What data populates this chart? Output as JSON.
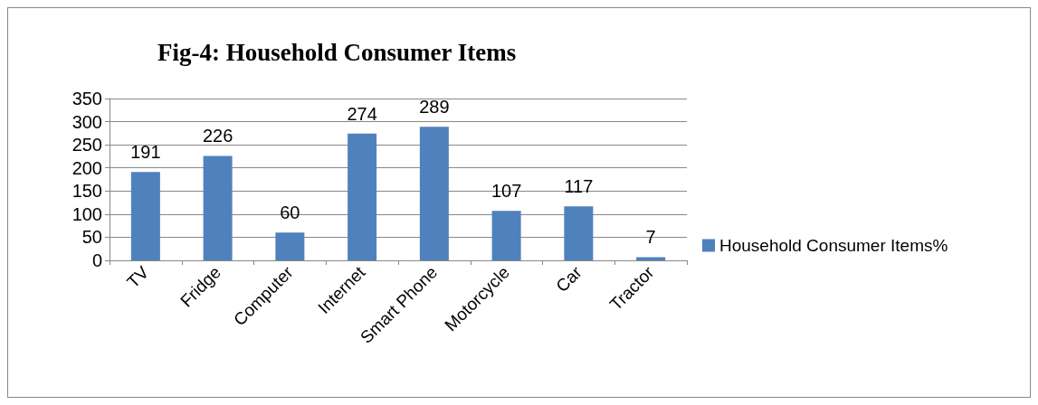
{
  "chart_data": {
    "type": "bar",
    "title": "Fig-4: Household Consumer Items",
    "categories": [
      "TV",
      "Fridge",
      "Computer",
      "Internet",
      "Smart Phone",
      "Motorcycle",
      "Car",
      "Tractor"
    ],
    "series": [
      {
        "name": "Household Consumer Items%",
        "color": "#4f81bd",
        "values": [
          191,
          226,
          60,
          274,
          289,
          107,
          117,
          7
        ]
      }
    ],
    "ylim": [
      0,
      350
    ],
    "yticks": [
      0,
      50,
      100,
      150,
      200,
      250,
      300,
      350
    ],
    "grid": "y",
    "legend": "right",
    "data_labels": true
  }
}
